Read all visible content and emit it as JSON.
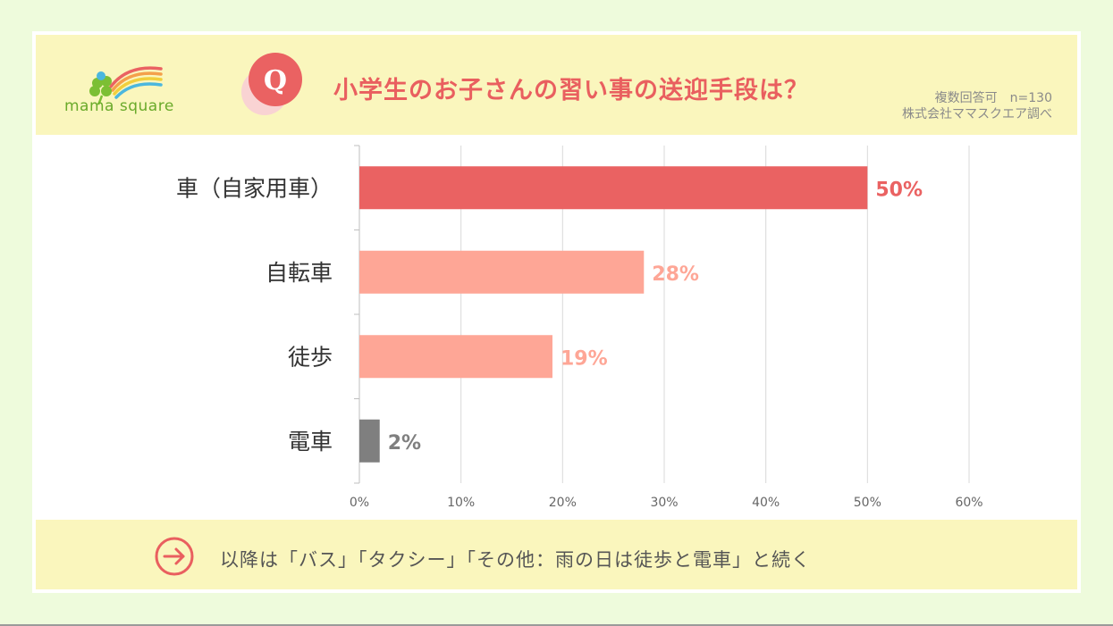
{
  "header": {
    "logo_text": "mama square",
    "q_letter": "Q",
    "title": "小学生のお子さんの習い事の送迎手段は？",
    "note_line1": "複数回答可　n=130",
    "note_line2": "株式会社ママスクエア調べ"
  },
  "chart_data": {
    "type": "bar",
    "orientation": "horizontal",
    "categories": [
      "車（自家用車）",
      "自転車",
      "徒歩",
      "電車"
    ],
    "values": [
      50,
      28,
      19,
      2
    ],
    "value_labels": [
      "50%",
      "28%",
      "19%",
      "2%"
    ],
    "xlim": [
      0,
      60
    ],
    "xticks": [
      0,
      10,
      20,
      30,
      40,
      50,
      60
    ],
    "xtick_labels": [
      "0%",
      "10%",
      "20%",
      "30%",
      "40%",
      "50%",
      "60%"
    ],
    "grid": true,
    "bar_colors": [
      "#ea6262",
      "#fea696",
      "#fea696",
      "#7f7f7f"
    ],
    "label_colors": [
      "#ea6262",
      "#fea696",
      "#fea696",
      "#7f7f7f"
    ]
  },
  "footer": {
    "text": "以降は「バス」「タクシー」「その他：雨の日は徒歩と電車」と続く"
  },
  "colors": {
    "accent": "#e95f5f",
    "panel": "#faf6bd",
    "background": "#eefbdc"
  },
  "icons": {
    "logo": "clover-rainbow-logo",
    "badge": "q-badge-icon",
    "arrow": "circle-arrow-right-icon"
  }
}
